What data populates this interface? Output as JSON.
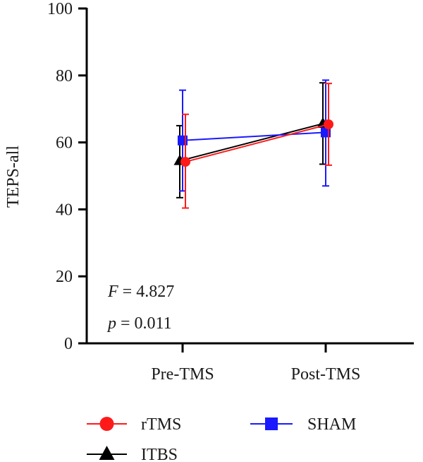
{
  "chart_data": {
    "type": "line",
    "ylabel": "TEPS-all",
    "xlabel": "",
    "ylim": [
      0,
      100
    ],
    "yticks": [
      0,
      20,
      40,
      60,
      80,
      100
    ],
    "categories": [
      "Pre-TMS",
      "Post-TMS"
    ],
    "series": [
      {
        "name": "rTMS",
        "color": "#ff1a1a",
        "marker": "circle",
        "values": [
          54.2,
          65.4
        ],
        "err_low": [
          40.4,
          53.2
        ],
        "err_high": [
          68.4,
          77.6
        ]
      },
      {
        "name": "SHAM",
        "color": "#1a1aff",
        "marker": "square",
        "values": [
          60.6,
          63.0
        ],
        "err_low": [
          45.5,
          47.0
        ],
        "err_high": [
          75.6,
          78.6
        ]
      },
      {
        "name": "ITBS",
        "color": "#000000",
        "marker": "triangle",
        "values": [
          54.5,
          65.6
        ],
        "err_low": [
          43.5,
          53.5
        ],
        "err_high": [
          65.0,
          77.8
        ]
      }
    ],
    "annotations": {
      "f_symbol": "F",
      "f_value": " = 4.827",
      "p_symbol": "p",
      "p_value": " = 0.011"
    },
    "legend_position": "bottom"
  }
}
